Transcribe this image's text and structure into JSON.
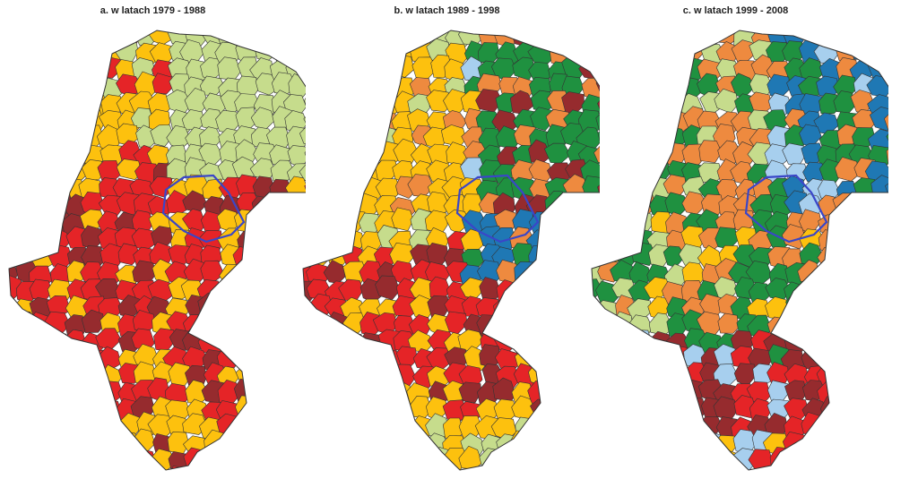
{
  "panels": [
    {
      "title": "a. w latach 1979 - 1988",
      "colors": [
        "#c6dc8c",
        "#fdc10e",
        "#e52427",
        "#962b2e"
      ]
    },
    {
      "title": "b. w latach 1989 - 1998",
      "colors": [
        "#c6dc8c",
        "#fdc10e",
        "#e52427",
        "#962b2e",
        "#1f9140",
        "#ee8a3f",
        "#a7cfee",
        "#1f78b4"
      ]
    },
    {
      "title": "c. w latach 1999 - 2008",
      "colors": [
        "#c6dc8c",
        "#fdc10e",
        "#e52427",
        "#962b2e",
        "#1f9140",
        "#ee8a3f",
        "#a7cfee",
        "#1f78b4"
      ]
    }
  ],
  "region_outline_color": "#3a46c8",
  "border_color": "#333333"
}
